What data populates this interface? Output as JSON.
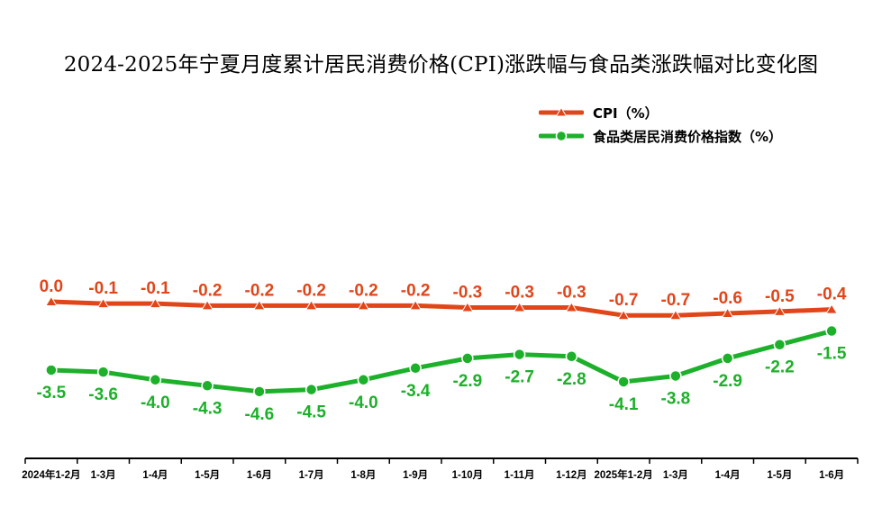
{
  "chart_data": {
    "type": "line",
    "title": "2024-2025年宁夏月度累计居民消费价格(CPI)涨跌幅与食品类涨跌幅对比变化图",
    "categories": [
      "2024年1-2月",
      "1-3月",
      "1-4月",
      "1-5月",
      "1-6月",
      "1-7月",
      "1-8月",
      "1-9月",
      "1-10月",
      "1-11月",
      "1-12月",
      "2025年1-2月",
      "1-3月",
      "1-4月",
      "1-5月",
      "1-6月"
    ],
    "series": [
      {
        "name": "CPI（%）",
        "color": "#e0461a",
        "marker": "triangle",
        "values": [
          0.0,
          -0.1,
          -0.1,
          -0.2,
          -0.2,
          -0.2,
          -0.2,
          -0.2,
          -0.3,
          -0.3,
          -0.3,
          -0.7,
          -0.7,
          -0.6,
          -0.5,
          -0.4
        ],
        "labels": [
          "0.0",
          "-0.1",
          "-0.1",
          "-0.2",
          "-0.2",
          "-0.2",
          "-0.2",
          "-0.2",
          "-0.3",
          "-0.3",
          "-0.3",
          "-0.7",
          "-0.7",
          "-0.6",
          "-0.5",
          "-0.4"
        ]
      },
      {
        "name": "食品类居民消费价格指数（%）",
        "color": "#1db02a",
        "marker": "circle",
        "values": [
          -3.5,
          -3.6,
          -4.0,
          -4.3,
          -4.6,
          -4.5,
          -4.0,
          -3.4,
          -2.9,
          -2.7,
          -2.8,
          -4.1,
          -3.8,
          -2.9,
          -2.2,
          -1.5
        ],
        "labels": [
          "-3.5",
          "-3.6",
          "-4.0",
          "-4.3",
          "-4.6",
          "-4.5",
          "-4.0",
          "-3.4",
          "-2.9",
          "-2.7",
          "-2.8",
          "-4.1",
          "-3.8",
          "-2.9",
          "-2.2",
          "-1.5"
        ]
      }
    ],
    "xlabel": "",
    "ylabel": "",
    "ylim": [
      -12,
      3
    ],
    "grid": false,
    "legend_position": "top-right"
  }
}
